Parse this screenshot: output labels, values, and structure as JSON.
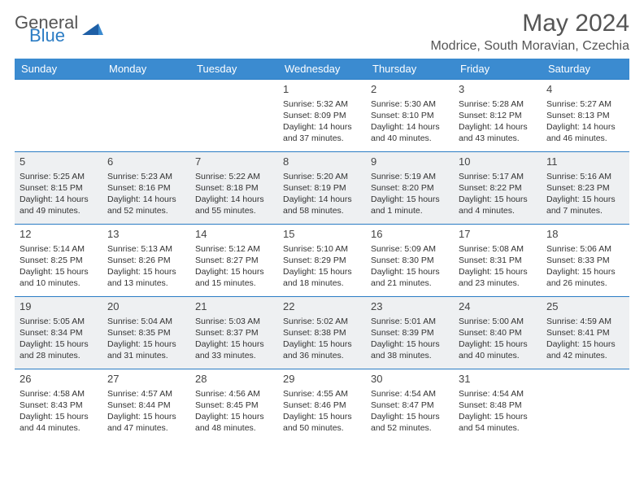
{
  "logo": {
    "general": "General",
    "blue": "Blue"
  },
  "title": "May 2024",
  "location": "Modrice, South Moravian, Czechia",
  "colors": {
    "headerBg": "#3b8bd0",
    "headerText": "#ffffff",
    "ruleColor": "#2b7cc4",
    "shadedBg": "#eef0f2",
    "bodyText": "#333333",
    "titleText": "#555555"
  },
  "dayNames": [
    "Sunday",
    "Monday",
    "Tuesday",
    "Wednesday",
    "Thursday",
    "Friday",
    "Saturday"
  ],
  "weeks": [
    {
      "shaded": false,
      "cells": [
        null,
        null,
        null,
        {
          "n": "1",
          "sr": "Sunrise: 5:32 AM",
          "ss": "Sunset: 8:09 PM",
          "d1": "Daylight: 14 hours",
          "d2": "and 37 minutes."
        },
        {
          "n": "2",
          "sr": "Sunrise: 5:30 AM",
          "ss": "Sunset: 8:10 PM",
          "d1": "Daylight: 14 hours",
          "d2": "and 40 minutes."
        },
        {
          "n": "3",
          "sr": "Sunrise: 5:28 AM",
          "ss": "Sunset: 8:12 PM",
          "d1": "Daylight: 14 hours",
          "d2": "and 43 minutes."
        },
        {
          "n": "4",
          "sr": "Sunrise: 5:27 AM",
          "ss": "Sunset: 8:13 PM",
          "d1": "Daylight: 14 hours",
          "d2": "and 46 minutes."
        }
      ]
    },
    {
      "shaded": true,
      "cells": [
        {
          "n": "5",
          "sr": "Sunrise: 5:25 AM",
          "ss": "Sunset: 8:15 PM",
          "d1": "Daylight: 14 hours",
          "d2": "and 49 minutes."
        },
        {
          "n": "6",
          "sr": "Sunrise: 5:23 AM",
          "ss": "Sunset: 8:16 PM",
          "d1": "Daylight: 14 hours",
          "d2": "and 52 minutes."
        },
        {
          "n": "7",
          "sr": "Sunrise: 5:22 AM",
          "ss": "Sunset: 8:18 PM",
          "d1": "Daylight: 14 hours",
          "d2": "and 55 minutes."
        },
        {
          "n": "8",
          "sr": "Sunrise: 5:20 AM",
          "ss": "Sunset: 8:19 PM",
          "d1": "Daylight: 14 hours",
          "d2": "and 58 minutes."
        },
        {
          "n": "9",
          "sr": "Sunrise: 5:19 AM",
          "ss": "Sunset: 8:20 PM",
          "d1": "Daylight: 15 hours",
          "d2": "and 1 minute."
        },
        {
          "n": "10",
          "sr": "Sunrise: 5:17 AM",
          "ss": "Sunset: 8:22 PM",
          "d1": "Daylight: 15 hours",
          "d2": "and 4 minutes."
        },
        {
          "n": "11",
          "sr": "Sunrise: 5:16 AM",
          "ss": "Sunset: 8:23 PM",
          "d1": "Daylight: 15 hours",
          "d2": "and 7 minutes."
        }
      ]
    },
    {
      "shaded": false,
      "cells": [
        {
          "n": "12",
          "sr": "Sunrise: 5:14 AM",
          "ss": "Sunset: 8:25 PM",
          "d1": "Daylight: 15 hours",
          "d2": "and 10 minutes."
        },
        {
          "n": "13",
          "sr": "Sunrise: 5:13 AM",
          "ss": "Sunset: 8:26 PM",
          "d1": "Daylight: 15 hours",
          "d2": "and 13 minutes."
        },
        {
          "n": "14",
          "sr": "Sunrise: 5:12 AM",
          "ss": "Sunset: 8:27 PM",
          "d1": "Daylight: 15 hours",
          "d2": "and 15 minutes."
        },
        {
          "n": "15",
          "sr": "Sunrise: 5:10 AM",
          "ss": "Sunset: 8:29 PM",
          "d1": "Daylight: 15 hours",
          "d2": "and 18 minutes."
        },
        {
          "n": "16",
          "sr": "Sunrise: 5:09 AM",
          "ss": "Sunset: 8:30 PM",
          "d1": "Daylight: 15 hours",
          "d2": "and 21 minutes."
        },
        {
          "n": "17",
          "sr": "Sunrise: 5:08 AM",
          "ss": "Sunset: 8:31 PM",
          "d1": "Daylight: 15 hours",
          "d2": "and 23 minutes."
        },
        {
          "n": "18",
          "sr": "Sunrise: 5:06 AM",
          "ss": "Sunset: 8:33 PM",
          "d1": "Daylight: 15 hours",
          "d2": "and 26 minutes."
        }
      ]
    },
    {
      "shaded": true,
      "cells": [
        {
          "n": "19",
          "sr": "Sunrise: 5:05 AM",
          "ss": "Sunset: 8:34 PM",
          "d1": "Daylight: 15 hours",
          "d2": "and 28 minutes."
        },
        {
          "n": "20",
          "sr": "Sunrise: 5:04 AM",
          "ss": "Sunset: 8:35 PM",
          "d1": "Daylight: 15 hours",
          "d2": "and 31 minutes."
        },
        {
          "n": "21",
          "sr": "Sunrise: 5:03 AM",
          "ss": "Sunset: 8:37 PM",
          "d1": "Daylight: 15 hours",
          "d2": "and 33 minutes."
        },
        {
          "n": "22",
          "sr": "Sunrise: 5:02 AM",
          "ss": "Sunset: 8:38 PM",
          "d1": "Daylight: 15 hours",
          "d2": "and 36 minutes."
        },
        {
          "n": "23",
          "sr": "Sunrise: 5:01 AM",
          "ss": "Sunset: 8:39 PM",
          "d1": "Daylight: 15 hours",
          "d2": "and 38 minutes."
        },
        {
          "n": "24",
          "sr": "Sunrise: 5:00 AM",
          "ss": "Sunset: 8:40 PM",
          "d1": "Daylight: 15 hours",
          "d2": "and 40 minutes."
        },
        {
          "n": "25",
          "sr": "Sunrise: 4:59 AM",
          "ss": "Sunset: 8:41 PM",
          "d1": "Daylight: 15 hours",
          "d2": "and 42 minutes."
        }
      ]
    },
    {
      "shaded": false,
      "cells": [
        {
          "n": "26",
          "sr": "Sunrise: 4:58 AM",
          "ss": "Sunset: 8:43 PM",
          "d1": "Daylight: 15 hours",
          "d2": "and 44 minutes."
        },
        {
          "n": "27",
          "sr": "Sunrise: 4:57 AM",
          "ss": "Sunset: 8:44 PM",
          "d1": "Daylight: 15 hours",
          "d2": "and 47 minutes."
        },
        {
          "n": "28",
          "sr": "Sunrise: 4:56 AM",
          "ss": "Sunset: 8:45 PM",
          "d1": "Daylight: 15 hours",
          "d2": "and 48 minutes."
        },
        {
          "n": "29",
          "sr": "Sunrise: 4:55 AM",
          "ss": "Sunset: 8:46 PM",
          "d1": "Daylight: 15 hours",
          "d2": "and 50 minutes."
        },
        {
          "n": "30",
          "sr": "Sunrise: 4:54 AM",
          "ss": "Sunset: 8:47 PM",
          "d1": "Daylight: 15 hours",
          "d2": "and 52 minutes."
        },
        {
          "n": "31",
          "sr": "Sunrise: 4:54 AM",
          "ss": "Sunset: 8:48 PM",
          "d1": "Daylight: 15 hours",
          "d2": "and 54 minutes."
        },
        null
      ]
    }
  ]
}
